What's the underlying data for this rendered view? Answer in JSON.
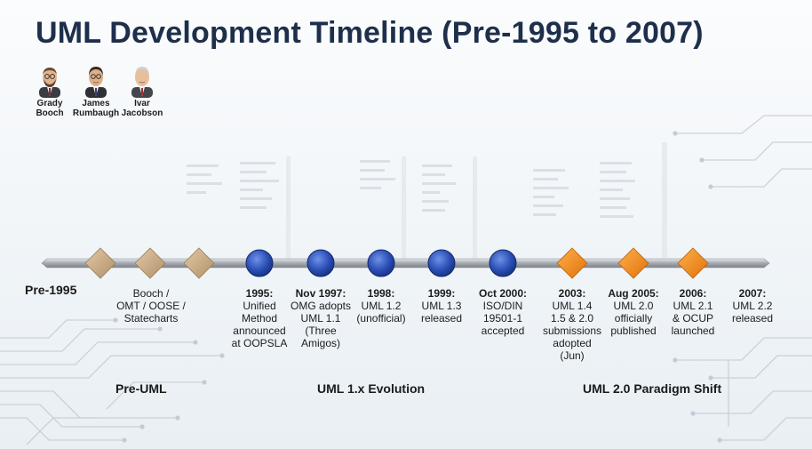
{
  "title": "UML Development Timeline (Pre-1995 to 2007)",
  "people": [
    {
      "name": "Grady\nBooch"
    },
    {
      "name": "James\nRumbaugh"
    },
    {
      "name": "Ivar\nJacobson"
    }
  ],
  "start_label": "Pre-1995",
  "events": [
    {
      "date": "",
      "text": "Booch /\nOMT / OOSE /\nStatecharts",
      "marker": "diamond-tan"
    },
    {
      "date": "1995:",
      "text": "Unified\nMethod\nannounced\nat OOPSLA",
      "marker": "circle-blue"
    },
    {
      "date": "Nov 1997:",
      "text": "OMG adopts\nUML 1.1\n(Three Amigos)",
      "marker": "circle-blue"
    },
    {
      "date": "1998:",
      "text": "UML 1.2\n(unofficial)",
      "marker": "circle-blue"
    },
    {
      "date": "1999:",
      "text": "UML 1.3\nreleased",
      "marker": "circle-blue"
    },
    {
      "date": "Oct 2000:",
      "text": "ISO/DIN\n19501-1\naccepted",
      "marker": "circle-blue"
    },
    {
      "date": "2003:",
      "text": "UML 1.4\n1.5 & 2.0\nsubmissions\nadopted\n(Jun)",
      "marker": "diamond-orange"
    },
    {
      "date": "Aug 2005:",
      "text": "UML 2.0\nofficially\npublished",
      "marker": "diamond-orange"
    },
    {
      "date": "2006:",
      "text": "UML 2.1\n& OCUP\nlaunched",
      "marker": "diamond-orange"
    },
    {
      "date": "2007:",
      "text": "UML 2.2\nreleased",
      "marker": "none"
    }
  ],
  "phases": [
    {
      "label": "Pre-UML"
    },
    {
      "label": "UML 1.x Evolution"
    },
    {
      "label": "UML 2.0 Paradigm Shift"
    }
  ],
  "colors": {
    "title": "#1e2f4c",
    "diamond_tan": "#c9aa82",
    "circle_blue": "#2a4eb5",
    "diamond_orange": "#f5880f",
    "axis": "#9aa0a6"
  }
}
